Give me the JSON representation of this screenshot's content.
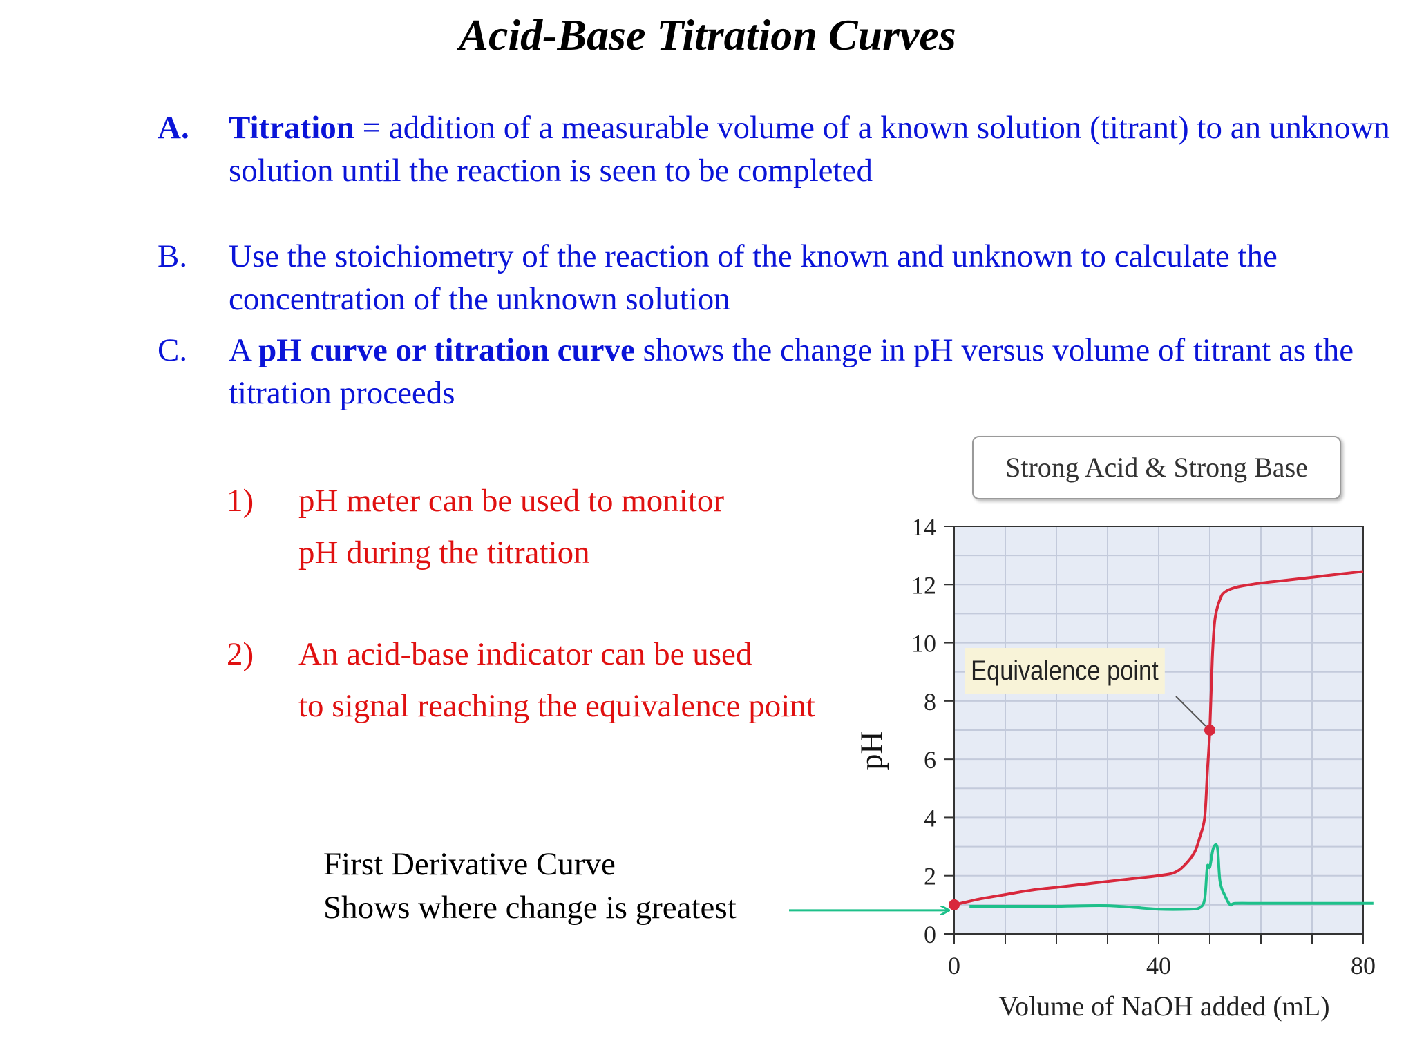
{
  "title": "Acid-Base Titration Curves",
  "items": [
    {
      "letter": "A.",
      "bold_term": "Titration",
      "text": " = addition of a measurable volume of a known solution (titrant) to an unknown solution until the reaction is seen to be completed"
    },
    {
      "letter": "B.",
      "text": "Use the stoichiometry of the reaction of the known and unknown to calculate the concentration of the unknown solution"
    },
    {
      "letter": "C.",
      "pre": "A ",
      "bold_term": "pH curve or titration curve",
      "text": " shows the change in pH versus volume of titrant as the titration proceeds"
    }
  ],
  "subitems": [
    {
      "num": "1)",
      "line1": "pH meter can be used to monitor",
      "line2": "pH during the titration"
    },
    {
      "num": "2)",
      "line1": "An acid-base indicator can be used",
      "line2": "to signal reaching the equivalence point"
    }
  ],
  "derivative_note": {
    "line1": "First Derivative Curve",
    "line2": "Shows where change is greatest"
  },
  "colors": {
    "text_blue": "#0a14d8",
    "text_red": "#e01010",
    "curve": "#d8283c",
    "derivative": "#1ec08a",
    "plot_bg": "#e6ebf5"
  },
  "chart_data": {
    "type": "line",
    "title": "Strong Acid & Strong Base",
    "xlabel": "Volume of NaOH added (mL)",
    "ylabel": "pH",
    "xlim": [
      0,
      80
    ],
    "ylim": [
      0,
      14
    ],
    "x_ticks": [
      0,
      40,
      80
    ],
    "y_ticks": [
      0,
      2,
      4,
      6,
      8,
      10,
      12,
      14
    ],
    "grid": true,
    "series": [
      {
        "x": [
          0,
          5,
          10,
          15,
          20,
          25,
          30,
          35,
          40,
          43,
          45,
          47,
          48,
          49,
          49.5,
          50,
          50.5,
          51,
          52,
          53,
          55,
          58,
          60,
          65,
          70,
          75,
          80
        ],
        "y": [
          1.0,
          1.2,
          1.35,
          1.5,
          1.6,
          1.7,
          1.8,
          1.9,
          2.0,
          2.1,
          2.35,
          2.8,
          3.3,
          4.0,
          5.5,
          7.0,
          9.5,
          10.8,
          11.5,
          11.75,
          11.9,
          12.0,
          12.05,
          12.15,
          12.25,
          12.35,
          12.45
        ]
      }
    ],
    "points": [
      {
        "label": "",
        "x": 0,
        "y": 1.0
      },
      {
        "label": "Equivalence point",
        "x": 50,
        "y": 7.0
      }
    ],
    "derivative_curve": {
      "x": [
        3,
        20,
        30,
        40,
        46,
        48,
        49,
        49.5,
        50,
        50.7,
        51.5,
        52,
        53,
        54,
        55,
        60,
        70,
        82
      ],
      "y": [
        0.95,
        0.95,
        0.97,
        0.85,
        0.85,
        0.9,
        1.2,
        2.3,
        2.3,
        2.95,
        2.95,
        1.8,
        1.3,
        1.0,
        1.05,
        1.05,
        1.05,
        1.05
      ]
    }
  }
}
